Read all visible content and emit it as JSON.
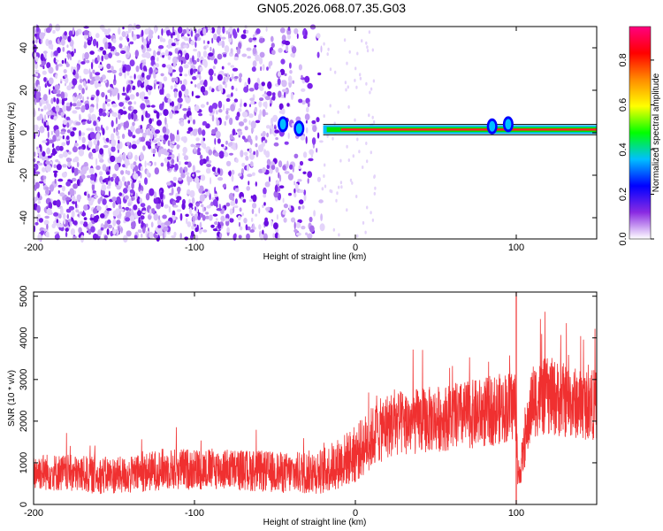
{
  "page": {
    "title": "GN05.2026.068.07.35.G03"
  },
  "chart_data": [
    {
      "type": "heatmap",
      "xlabel": "Height of straight line (km)",
      "ylabel": "Frequency (Hz)",
      "xlim": [
        -200,
        150
      ],
      "ylim": [
        -50,
        50
      ],
      "xticks": [
        -200,
        -100,
        0,
        100
      ],
      "xtick_labels": [
        "-200",
        "-100",
        "0",
        "100"
      ],
      "yticks": [
        -40,
        -20,
        0,
        20,
        40
      ],
      "ytick_labels": [
        "-40",
        "-20",
        "0",
        "20",
        "40"
      ],
      "colorbar": {
        "label": "Normalized spectral amplitude",
        "range": [
          0,
          0.95
        ],
        "ticks": [
          0,
          0.2,
          0.4,
          0.6,
          0.8
        ],
        "tick_labels": [
          "0.0",
          "0.2",
          "0.4",
          "0.6",
          "0.8"
        ],
        "colors": [
          "#ffffff",
          "#8a2be2",
          "#0000ff",
          "#00bfff",
          "#00ff00",
          "#ffff00",
          "#ff8c00",
          "#ff0000",
          "#ff0080"
        ]
      },
      "features": {
        "noise_region_x": [
          -200,
          -20
        ],
        "signal_band": {
          "x_start": -20,
          "x_end": 150,
          "frequency": 1.5,
          "half_width": 2
        },
        "signal_bursts": [
          {
            "x": -45,
            "frequency": 4
          },
          {
            "x": -35,
            "frequency": 2
          },
          {
            "x": 85,
            "frequency": 3
          },
          {
            "x": 95,
            "frequency": 4
          }
        ]
      },
      "grid": false
    },
    {
      "type": "line",
      "xlabel": "Height of straight line (km)",
      "ylabel": "SNR (10 * v/v)",
      "xlim": [
        -200,
        150
      ],
      "ylim": [
        0,
        5100
      ],
      "xticks": [
        -200,
        -100,
        0,
        100
      ],
      "xtick_labels": [
        "-200",
        "-100",
        "0",
        "100"
      ],
      "yticks": [
        0,
        1000,
        2000,
        3000,
        4000,
        5000
      ],
      "ytick_labels": [
        "0",
        "1000",
        "2000",
        "3000",
        "4000",
        "5000"
      ],
      "series_color": "#f03030",
      "series": [
        {
          "x": [
            -200,
            -180,
            -160,
            -140,
            -120,
            -100,
            -80,
            -60,
            -40,
            -20,
            0,
            10,
            20,
            40,
            60,
            80,
            90,
            100,
            101,
            110,
            120,
            130,
            140,
            150
          ],
          "mean": [
            800,
            750,
            700,
            700,
            850,
            850,
            850,
            800,
            750,
            800,
            1200,
            1600,
            1900,
            2000,
            2100,
            2200,
            2300,
            2400,
            500,
            2500,
            2600,
            2500,
            2400,
            2400
          ],
          "spread": [
            450,
            450,
            450,
            450,
            500,
            500,
            500,
            500,
            500,
            550,
            700,
            750,
            800,
            800,
            800,
            850,
            850,
            900,
            300,
            900,
            950,
            900,
            850,
            850
          ]
        }
      ],
      "spike": {
        "x": 100,
        "peak": 5100
      },
      "grid": false
    }
  ]
}
